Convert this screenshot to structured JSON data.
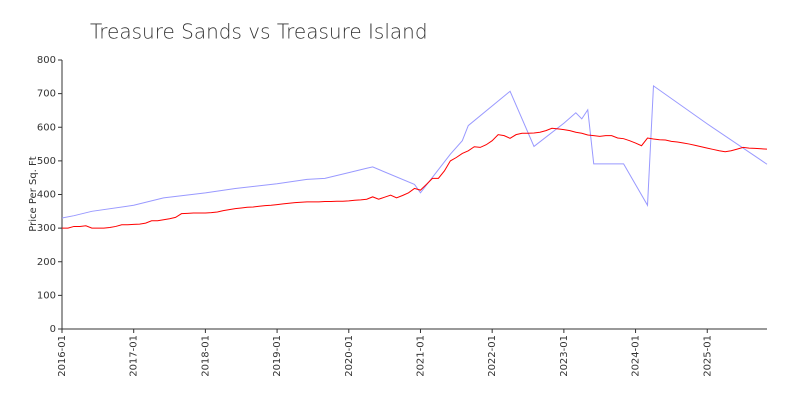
{
  "chart_data": {
    "type": "line",
    "title": "Treasure Sands vs Treasure Island",
    "y_label": "Price Per Sq. Ft",
    "xlim": [
      "2016-01",
      "2025-11"
    ],
    "xticks": [
      "2016-01",
      "2017-01",
      "2018-01",
      "2019-01",
      "2020-01",
      "2021-01",
      "2022-01",
      "2023-01",
      "2024-01",
      "2025-01"
    ],
    "ylim": [
      0,
      800
    ],
    "yticks": [
      0,
      100,
      200,
      300,
      400,
      500,
      600,
      700,
      800
    ],
    "grid": false,
    "series": [
      {
        "color": "#9999ff",
        "x": [
          "2016-01",
          "2016-03",
          "2016-06",
          "2017-01",
          "2017-06",
          "2018-01",
          "2018-06",
          "2019-01",
          "2019-06",
          "2019-09",
          "2020-01",
          "2020-04",
          "2020-05",
          "2020-12",
          "2021-01",
          "2021-06",
          "2021-08",
          "2021-09",
          "2022-04",
          "2022-08",
          "2023-01",
          "2023-03",
          "2023-04",
          "2023-05",
          "2023-06",
          "2023-11",
          "2024-03",
          "2024-04",
          "2025-01",
          "2025-11"
        ],
        "values": [
          330,
          337,
          350,
          368,
          390,
          405,
          418,
          432,
          445,
          448,
          465,
          478,
          482,
          430,
          405,
          520,
          560,
          605,
          707,
          543,
          612,
          643,
          625,
          652,
          491,
          491,
          368,
          723,
          610,
          490
        ]
      },
      {
        "color": "#ff0000",
        "x": [
          "2016-01",
          "2016-02",
          "2016-03",
          "2016-04",
          "2016-05",
          "2016-06",
          "2016-07",
          "2016-08",
          "2016-09",
          "2016-10",
          "2016-11",
          "2016-12",
          "2017-01",
          "2017-02",
          "2017-03",
          "2017-04",
          "2017-05",
          "2017-06",
          "2017-07",
          "2017-08",
          "2017-09",
          "2017-10",
          "2017-11",
          "2017-12",
          "2018-01",
          "2018-02",
          "2018-03",
          "2018-04",
          "2018-05",
          "2018-06",
          "2018-07",
          "2018-08",
          "2018-09",
          "2018-10",
          "2018-11",
          "2018-12",
          "2019-01",
          "2019-02",
          "2019-03",
          "2019-04",
          "2019-05",
          "2019-06",
          "2019-07",
          "2019-08",
          "2019-09",
          "2019-10",
          "2019-11",
          "2019-12",
          "2020-01",
          "2020-02",
          "2020-03",
          "2020-04",
          "2020-05",
          "2020-06",
          "2020-07",
          "2020-08",
          "2020-09",
          "2020-10",
          "2020-11",
          "2020-12",
          "2021-01",
          "2021-02",
          "2021-03",
          "2021-04",
          "2021-05",
          "2021-06",
          "2021-07",
          "2021-08",
          "2021-09",
          "2021-10",
          "2021-11",
          "2021-12",
          "2022-01",
          "2022-02",
          "2022-03",
          "2022-04",
          "2022-05",
          "2022-06",
          "2022-07",
          "2022-08",
          "2022-09",
          "2022-10",
          "2022-11",
          "2022-12",
          "2023-01",
          "2023-02",
          "2023-03",
          "2023-04",
          "2023-05",
          "2023-06",
          "2023-07",
          "2023-08",
          "2023-09",
          "2023-10",
          "2023-11",
          "2023-12",
          "2024-01",
          "2024-02",
          "2024-03",
          "2024-04",
          "2024-05",
          "2024-06",
          "2024-07",
          "2024-08",
          "2024-09",
          "2024-10",
          "2024-11",
          "2024-12",
          "2025-01",
          "2025-02",
          "2025-03",
          "2025-04",
          "2025-05",
          "2025-06",
          "2025-07",
          "2025-08",
          "2025-09",
          "2025-10",
          "2025-11"
        ],
        "values": [
          300,
          300,
          305,
          305,
          307,
          300,
          300,
          300,
          302,
          305,
          310,
          310,
          311,
          312,
          315,
          322,
          322,
          325,
          328,
          332,
          343,
          344,
          345,
          345,
          345,
          346,
          348,
          352,
          355,
          358,
          360,
          362,
          363,
          365,
          367,
          368,
          370,
          372,
          374,
          376,
          377,
          378,
          378,
          378,
          379,
          379,
          380,
          380,
          381,
          383,
          384,
          386,
          393,
          386,
          392,
          398,
          390,
          397,
          405,
          418,
          413,
          430,
          448,
          448,
          470,
          500,
          510,
          522,
          530,
          542,
          540,
          548,
          560,
          578,
          575,
          567,
          578,
          582,
          582,
          583,
          585,
          590,
          597,
          595,
          593,
          590,
          585,
          582,
          577,
          575,
          573,
          575,
          575,
          568,
          566,
          560,
          553,
          545,
          568,
          565,
          563,
          562,
          558,
          556,
          553,
          550,
          546,
          542,
          538,
          534,
          530,
          527,
          530,
          535,
          540,
          538,
          537,
          536,
          535
        ]
      }
    ]
  }
}
